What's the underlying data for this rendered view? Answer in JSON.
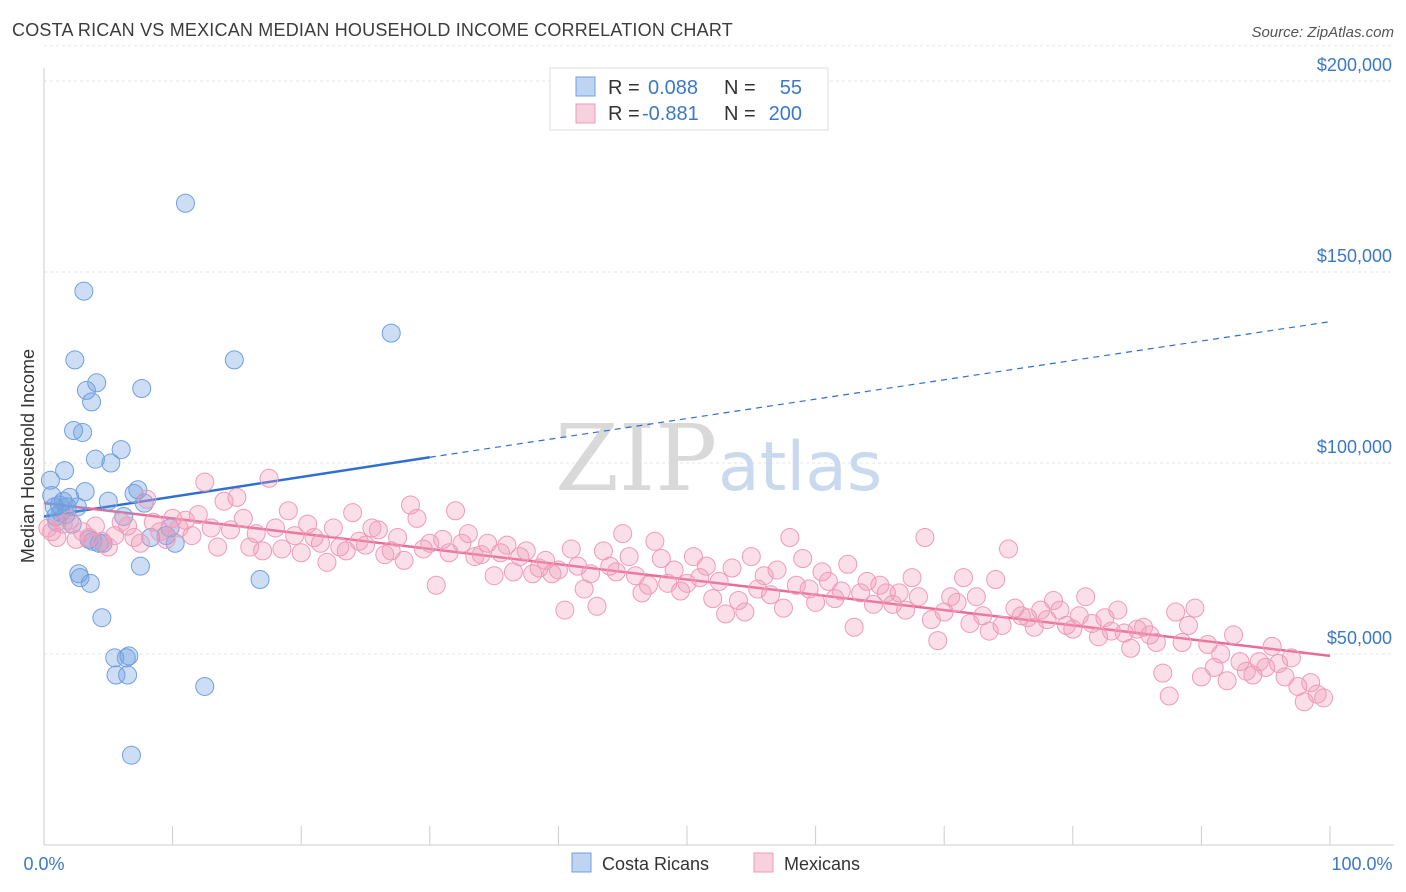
{
  "header": {
    "title": "COSTA RICAN VS MEXICAN MEDIAN HOUSEHOLD INCOME CORRELATION CHART",
    "source": "Source: ZipAtlas.com"
  },
  "watermark": {
    "zip": "ZIP",
    "atlas": "atlas"
  },
  "legend": {
    "r_label": "R =",
    "n_label": "N =",
    "rows": [
      {
        "r": "0.088",
        "n": "55",
        "color": "#6fa0e0"
      },
      {
        "r": "-0.881",
        "n": "200",
        "color": "#f09ab8"
      }
    ]
  },
  "bottom_legend": [
    "Costa Ricans",
    "Mexicans"
  ],
  "chart_data": {
    "type": "scatter",
    "ylabel": "Median Household Income",
    "xlim": [
      0,
      100
    ],
    "ylim": [
      0,
      210000
    ],
    "x_tick_labels": [
      "0.0%",
      "100.0%"
    ],
    "y_ticks": [
      {
        "value": 50000,
        "label": "$50,000"
      },
      {
        "value": 100000,
        "label": "$100,000"
      },
      {
        "value": 150000,
        "label": "$150,000"
      },
      {
        "value": 200000,
        "label": "$200,000"
      }
    ],
    "grid": true,
    "series": [
      {
        "name": "Costa Ricans",
        "color": "#6fa0e0",
        "fill": "rgba(111,160,224,0.35)",
        "trend": {
          "x0": 0,
          "y0": 86000,
          "x1": 30,
          "y1": 101500,
          "x_end": 100,
          "y_end": 137000,
          "color": "#2f6fd0"
        },
        "points": [
          [
            0.5,
            95500
          ],
          [
            0.6,
            91500
          ],
          [
            0.8,
            88500
          ],
          [
            0.9,
            86000
          ],
          [
            1.0,
            84500
          ],
          [
            1.2,
            89000
          ],
          [
            1.3,
            87000
          ],
          [
            1.5,
            90000
          ],
          [
            1.6,
            98000
          ],
          [
            1.7,
            86500
          ],
          [
            1.8,
            88500
          ],
          [
            2.0,
            91000
          ],
          [
            2.2,
            84000
          ],
          [
            2.3,
            108500
          ],
          [
            2.4,
            127000
          ],
          [
            2.6,
            88500
          ],
          [
            2.7,
            71000
          ],
          [
            2.8,
            70000
          ],
          [
            3.0,
            108000
          ],
          [
            3.1,
            145000
          ],
          [
            3.2,
            92500
          ],
          [
            3.3,
            119000
          ],
          [
            3.5,
            80000
          ],
          [
            3.6,
            68500
          ],
          [
            3.7,
            116000
          ],
          [
            3.8,
            79500
          ],
          [
            4.0,
            101000
          ],
          [
            4.1,
            121000
          ],
          [
            4.3,
            79000
          ],
          [
            4.5,
            59500
          ],
          [
            4.6,
            79000
          ],
          [
            5.0,
            90000
          ],
          [
            5.2,
            100000
          ],
          [
            5.5,
            49000
          ],
          [
            5.6,
            44500
          ],
          [
            6.0,
            103500
          ],
          [
            6.2,
            86000
          ],
          [
            6.4,
            49000
          ],
          [
            6.5,
            44500
          ],
          [
            6.6,
            49500
          ],
          [
            6.8,
            23500
          ],
          [
            7.0,
            92000
          ],
          [
            7.3,
            93000
          ],
          [
            7.5,
            73000
          ],
          [
            7.6,
            119500
          ],
          [
            7.8,
            89500
          ],
          [
            8.3,
            80500
          ],
          [
            9.5,
            81000
          ],
          [
            9.8,
            83000
          ],
          [
            10.2,
            79000
          ],
          [
            11.0,
            168000
          ],
          [
            12.5,
            41500
          ],
          [
            14.8,
            127000
          ],
          [
            16.8,
            69500
          ],
          [
            27.0,
            134000
          ]
        ]
      },
      {
        "name": "Mexicans",
        "color": "#f09ab8",
        "fill": "rgba(240,154,184,0.32)",
        "trend": {
          "x0": 0,
          "y0": 89500,
          "x1": 100,
          "y1": 49500,
          "color": "#e86b98"
        },
        "points": [
          [
            0.3,
            83000
          ],
          [
            0.6,
            82000
          ],
          [
            1.0,
            80500
          ],
          [
            1.5,
            84000
          ],
          [
            2.0,
            85000
          ],
          [
            2.5,
            80000
          ],
          [
            3.0,
            82000
          ],
          [
            3.5,
            80500
          ],
          [
            4.0,
            83500
          ],
          [
            4.5,
            79500
          ],
          [
            5.0,
            78000
          ],
          [
            5.5,
            81000
          ],
          [
            6.0,
            84500
          ],
          [
            6.5,
            83500
          ],
          [
            7.0,
            80500
          ],
          [
            7.5,
            79000
          ],
          [
            8.0,
            90500
          ],
          [
            8.5,
            84500
          ],
          [
            9.0,
            82000
          ],
          [
            9.5,
            80000
          ],
          [
            10.0,
            85500
          ],
          [
            10.5,
            83000
          ],
          [
            11.0,
            85000
          ],
          [
            11.5,
            81000
          ],
          [
            12.0,
            86500
          ],
          [
            12.5,
            95000
          ],
          [
            13.0,
            83000
          ],
          [
            13.5,
            78000
          ],
          [
            14.0,
            90000
          ],
          [
            14.5,
            82500
          ],
          [
            15.0,
            91000
          ],
          [
            15.5,
            85500
          ],
          [
            16.0,
            78000
          ],
          [
            16.5,
            81500
          ],
          [
            17.0,
            77000
          ],
          [
            17.5,
            96000
          ],
          [
            18.0,
            83000
          ],
          [
            18.5,
            77500
          ],
          [
            19.0,
            87500
          ],
          [
            19.5,
            81000
          ],
          [
            20.0,
            76500
          ],
          [
            20.5,
            84000
          ],
          [
            21.0,
            80500
          ],
          [
            21.5,
            79000
          ],
          [
            22.0,
            74000
          ],
          [
            22.5,
            83000
          ],
          [
            23.0,
            78000
          ],
          [
            23.5,
            77000
          ],
          [
            24.0,
            87000
          ],
          [
            24.5,
            79500
          ],
          [
            25.0,
            78500
          ],
          [
            25.5,
            83000
          ],
          [
            26.0,
            82500
          ],
          [
            26.5,
            76000
          ],
          [
            27.0,
            77000
          ],
          [
            27.5,
            80500
          ],
          [
            28.0,
            74500
          ],
          [
            28.5,
            89000
          ],
          [
            29.0,
            85500
          ],
          [
            29.5,
            77500
          ],
          [
            30.0,
            79000
          ],
          [
            30.5,
            68000
          ],
          [
            31.0,
            80000
          ],
          [
            31.5,
            76500
          ],
          [
            32.0,
            87500
          ],
          [
            32.5,
            79000
          ],
          [
            33.0,
            81500
          ],
          [
            33.5,
            75500
          ],
          [
            34.0,
            76000
          ],
          [
            34.5,
            79000
          ],
          [
            35.0,
            70500
          ],
          [
            35.5,
            76500
          ],
          [
            36.0,
            78500
          ],
          [
            36.5,
            71500
          ],
          [
            37.0,
            75500
          ],
          [
            37.5,
            77000
          ],
          [
            38.0,
            71000
          ],
          [
            38.5,
            72500
          ],
          [
            39.0,
            74500
          ],
          [
            39.5,
            71000
          ],
          [
            40.0,
            72000
          ],
          [
            40.5,
            61500
          ],
          [
            41.0,
            77500
          ],
          [
            41.5,
            73000
          ],
          [
            42.0,
            67000
          ],
          [
            42.5,
            71000
          ],
          [
            43.0,
            62500
          ],
          [
            43.5,
            77000
          ],
          [
            44.0,
            73000
          ],
          [
            44.5,
            71500
          ],
          [
            45.0,
            81500
          ],
          [
            45.5,
            75500
          ],
          [
            46.0,
            70500
          ],
          [
            46.5,
            66000
          ],
          [
            47.0,
            68000
          ],
          [
            47.5,
            79500
          ],
          [
            48.0,
            75000
          ],
          [
            48.5,
            68500
          ],
          [
            49.0,
            72000
          ],
          [
            49.5,
            66500
          ],
          [
            50.0,
            68500
          ],
          [
            50.5,
            75500
          ],
          [
            51.0,
            70000
          ],
          [
            51.5,
            73000
          ],
          [
            52.0,
            64500
          ],
          [
            52.5,
            69000
          ],
          [
            53.0,
            60500
          ],
          [
            53.5,
            72500
          ],
          [
            54.0,
            64000
          ],
          [
            54.5,
            61000
          ],
          [
            55.0,
            75500
          ],
          [
            55.5,
            67000
          ],
          [
            56.0,
            70500
          ],
          [
            56.5,
            65500
          ],
          [
            57.0,
            72000
          ],
          [
            57.5,
            62000
          ],
          [
            58.0,
            80500
          ],
          [
            58.5,
            68000
          ],
          [
            59.0,
            75000
          ],
          [
            59.5,
            67000
          ],
          [
            60.0,
            63500
          ],
          [
            60.5,
            71500
          ],
          [
            61.0,
            69000
          ],
          [
            61.5,
            64500
          ],
          [
            62.0,
            66500
          ],
          [
            62.5,
            73500
          ],
          [
            63.0,
            57000
          ],
          [
            63.5,
            66000
          ],
          [
            64.0,
            69000
          ],
          [
            64.5,
            63000
          ],
          [
            65.0,
            68000
          ],
          [
            65.5,
            66000
          ],
          [
            66.0,
            63000
          ],
          [
            66.5,
            66000
          ],
          [
            67.0,
            61500
          ],
          [
            67.5,
            70000
          ],
          [
            68.0,
            65000
          ],
          [
            68.5,
            80500
          ],
          [
            69.0,
            59000
          ],
          [
            69.5,
            53500
          ],
          [
            70.0,
            61000
          ],
          [
            70.5,
            65000
          ],
          [
            71.0,
            63500
          ],
          [
            71.5,
            70000
          ],
          [
            72.0,
            58000
          ],
          [
            72.5,
            65000
          ],
          [
            73.0,
            60000
          ],
          [
            73.5,
            56000
          ],
          [
            74.0,
            69500
          ],
          [
            74.5,
            57500
          ],
          [
            75.0,
            77500
          ],
          [
            75.5,
            62000
          ],
          [
            76.0,
            60000
          ],
          [
            76.5,
            59500
          ],
          [
            77.0,
            57000
          ],
          [
            77.5,
            61500
          ],
          [
            78.0,
            59000
          ],
          [
            78.5,
            64000
          ],
          [
            79.0,
            61500
          ],
          [
            79.5,
            57500
          ],
          [
            80.0,
            56500
          ],
          [
            80.5,
            60000
          ],
          [
            81.0,
            65000
          ],
          [
            81.5,
            58000
          ],
          [
            82.0,
            54500
          ],
          [
            82.5,
            59500
          ],
          [
            83.0,
            56000
          ],
          [
            83.5,
            61500
          ],
          [
            84.0,
            55500
          ],
          [
            84.5,
            51500
          ],
          [
            85.0,
            56500
          ],
          [
            85.5,
            57000
          ],
          [
            86.0,
            55000
          ],
          [
            86.5,
            53000
          ],
          [
            87.0,
            45000
          ],
          [
            87.5,
            39000
          ],
          [
            88.0,
            61000
          ],
          [
            88.5,
            53000
          ],
          [
            89.0,
            57500
          ],
          [
            89.5,
            62000
          ],
          [
            90.0,
            44000
          ],
          [
            90.5,
            52500
          ],
          [
            91.0,
            46500
          ],
          [
            91.5,
            50000
          ],
          [
            92.0,
            43000
          ],
          [
            92.5,
            55000
          ],
          [
            93.0,
            48000
          ],
          [
            93.5,
            45500
          ],
          [
            94.0,
            44500
          ],
          [
            94.5,
            48000
          ],
          [
            95.0,
            46500
          ],
          [
            95.5,
            52000
          ],
          [
            96.0,
            47500
          ],
          [
            96.5,
            44000
          ],
          [
            97.0,
            49000
          ],
          [
            97.5,
            41500
          ],
          [
            98.0,
            37500
          ],
          [
            98.5,
            42500
          ],
          [
            99.0,
            39500
          ],
          [
            99.5,
            38500
          ]
        ]
      }
    ]
  }
}
